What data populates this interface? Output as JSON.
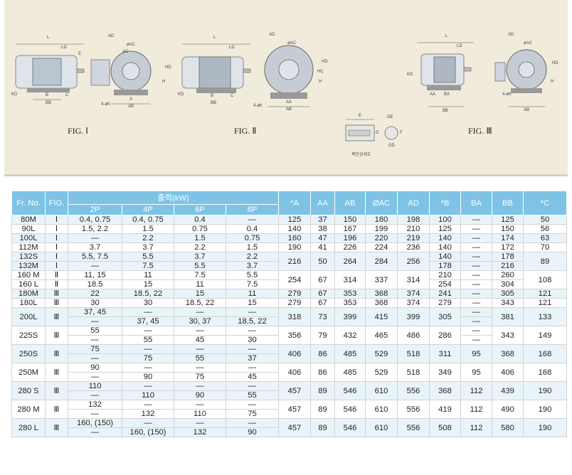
{
  "figures": [
    {
      "label": "FIG. Ⅰ"
    },
    {
      "label": "FIG. Ⅱ"
    },
    {
      "label": "FIG. Ⅲ"
    }
  ],
  "detail_caption": "축단상세도",
  "dims": {
    "fig1": [
      "L",
      "AD",
      "LD",
      "øAC",
      "E",
      "AC",
      "HD",
      "KD",
      "B",
      "C",
      "BB",
      "A",
      "AB",
      "4-øK",
      "H"
    ],
    "fig2": [
      "L",
      "AD",
      "LD",
      "øAC",
      "HD",
      "HC",
      "KD",
      "B",
      "C",
      "BB",
      "AA",
      "AB",
      "4-øK",
      "H"
    ],
    "fig3": [
      "L",
      "AD",
      "LD",
      "øAC",
      "HD",
      "KD",
      "AA",
      "BA",
      "BB",
      "AB",
      "4-øK",
      "H"
    ],
    "detail": [
      "E",
      "GE",
      "D",
      "GD",
      "F"
    ]
  },
  "table": {
    "headers": {
      "frame": "Fr. No.",
      "fig": "FIG.",
      "output": "출력(kW)",
      "poles": [
        "2P",
        "4P",
        "6P",
        "8P"
      ],
      "cols": [
        "*A",
        "AA",
        "AB",
        "ØAC",
        "AD",
        "*B",
        "BA",
        "BB",
        "*C"
      ]
    },
    "rows": [
      {
        "fr": [
          "80M"
        ],
        "fig": "Ⅰ",
        "p2": [
          "0.4, 0.75"
        ],
        "p4": [
          "0.4, 0.75"
        ],
        "p6": [
          "0.4"
        ],
        "p8": [
          "—"
        ],
        "A": "125",
        "AA": "37",
        "AB": "150",
        "AC": "180",
        "AD": "198",
        "B": [
          "100"
        ],
        "BA": [
          "—"
        ],
        "BB": [
          "125"
        ],
        "C": "50"
      },
      {
        "fr": [
          "90L"
        ],
        "fig": "Ⅰ",
        "p2": [
          "1.5, 2.2"
        ],
        "p4": [
          "1.5"
        ],
        "p6": [
          "0.75"
        ],
        "p8": [
          "0.4"
        ],
        "A": "140",
        "AA": "38",
        "AB": "167",
        "AC": "199",
        "AD": "210",
        "B": [
          "125"
        ],
        "BA": [
          "—"
        ],
        "BB": [
          "150"
        ],
        "C": "56"
      },
      {
        "fr": [
          "100L"
        ],
        "fig": "Ⅰ",
        "p2": [
          "—"
        ],
        "p4": [
          "2.2"
        ],
        "p6": [
          "1.5"
        ],
        "p8": [
          "0.75"
        ],
        "A": "160",
        "AA": "47",
        "AB": "196",
        "AC": "220",
        "AD": "219",
        "B": [
          "140"
        ],
        "BA": [
          "—"
        ],
        "BB": [
          "174"
        ],
        "C": "63"
      },
      {
        "fr": [
          "112M"
        ],
        "fig": "Ⅰ",
        "p2": [
          "3.7"
        ],
        "p4": [
          "3.7"
        ],
        "p6": [
          "2.2"
        ],
        "p8": [
          "1.5"
        ],
        "A": "190",
        "AA": "41",
        "AB": "226",
        "AC": "224",
        "AD": "236",
        "B": [
          "140"
        ],
        "BA": [
          "—"
        ],
        "BB": [
          "172"
        ],
        "C": "70"
      },
      {
        "fr": [
          "132S",
          "132M"
        ],
        "fig2": [
          "Ⅰ",
          "Ⅰ"
        ],
        "p2": [
          "5.5, 7.5",
          "—"
        ],
        "p4": [
          "5.5",
          "7.5"
        ],
        "p6": [
          "3.7",
          "5.5"
        ],
        "p8": [
          "2.2",
          "3.7"
        ],
        "A": "216",
        "AA": "50",
        "AB": "264",
        "AC": "284",
        "AD": "256",
        "B": [
          "140",
          "178"
        ],
        "BA": [
          "—",
          "—"
        ],
        "BB": [
          "178",
          "216"
        ],
        "C": "89"
      },
      {
        "fr": [
          "160 M",
          "160 L"
        ],
        "fig2": [
          "Ⅱ",
          "Ⅱ"
        ],
        "p2": [
          "11, 15",
          "18.5"
        ],
        "p4": [
          "11",
          "15"
        ],
        "p6": [
          "7.5",
          "11"
        ],
        "p8": [
          "5.5",
          "7.5"
        ],
        "A": "254",
        "AA": "67",
        "AB": "314",
        "AC": "337",
        "AD": "314",
        "B": [
          "210",
          "254"
        ],
        "BA": [
          "—",
          "—"
        ],
        "BB": [
          "260",
          "304"
        ],
        "C": "108"
      },
      {
        "fr": [
          "180M"
        ],
        "fig": "Ⅲ",
        "p2": [
          "22"
        ],
        "p4": [
          "18.5, 22"
        ],
        "p6": [
          "15"
        ],
        "p8": [
          "11"
        ],
        "A": "279",
        "AA": "67",
        "AB": "353",
        "AC": "368",
        "AD": "374",
        "B": [
          "241"
        ],
        "BA": [
          "—"
        ],
        "BB": [
          "305"
        ],
        "C": "121"
      },
      {
        "fr": [
          "180L"
        ],
        "fig": "Ⅲ",
        "p2": [
          "30"
        ],
        "p4": [
          "30"
        ],
        "p6": [
          "18.5, 22"
        ],
        "p8": [
          "15"
        ],
        "A": "279",
        "AA": "67",
        "AB": "353",
        "AC": "368",
        "AD": "374",
        "B": [
          "279"
        ],
        "BA": [
          "—"
        ],
        "BB": [
          "343"
        ],
        "C": "121"
      },
      {
        "fr": [
          "200L"
        ],
        "fig": "Ⅲ",
        "p2": [
          "37, 45",
          "—"
        ],
        "p4": [
          "—",
          "37, 45"
        ],
        "p6": [
          "—",
          "30, 37"
        ],
        "p8": [
          "—",
          "18.5, 22"
        ],
        "A": "318",
        "AA": "73",
        "AB": "399",
        "AC": "415",
        "AD": "399",
        "B": [
          "305"
        ],
        "BA": [
          "—",
          "—"
        ],
        "BB": [
          "381"
        ],
        "C": "133"
      },
      {
        "fr": [
          "225S"
        ],
        "fig": "Ⅲ",
        "p2": [
          "55",
          "—"
        ],
        "p4": [
          "—",
          "55"
        ],
        "p6": [
          "—",
          "45"
        ],
        "p8": [
          "—",
          "30"
        ],
        "A": "356",
        "AA": "79",
        "AB": "432",
        "AC": "465",
        "AD": "486",
        "B": [
          "286"
        ],
        "BA": [
          "—",
          "—"
        ],
        "BB": [
          "343"
        ],
        "C": "149"
      },
      {
        "fr": [
          "250S"
        ],
        "fig": "Ⅲ",
        "p2": [
          "75",
          "—"
        ],
        "p4": [
          "—",
          "75"
        ],
        "p6": [
          "—",
          "55"
        ],
        "p8": [
          "—",
          "37"
        ],
        "A": "406",
        "AA": "86",
        "AB": "485",
        "AC": "529",
        "AD": "518",
        "B": [
          "311"
        ],
        "BA": [
          "95"
        ],
        "BB": [
          "368"
        ],
        "C": "168"
      },
      {
        "fr": [
          "250M"
        ],
        "fig": "Ⅲ",
        "p2": [
          "90",
          "—"
        ],
        "p4": [
          "—",
          "90"
        ],
        "p6": [
          "—",
          "75"
        ],
        "p8": [
          "—",
          "45"
        ],
        "A": "406",
        "AA": "86",
        "AB": "485",
        "AC": "529",
        "AD": "518",
        "B": [
          "349"
        ],
        "BA": [
          "95"
        ],
        "BB": [
          "406"
        ],
        "C": "168"
      },
      {
        "fr": [
          "280 S"
        ],
        "fig": "Ⅲ",
        "p2": [
          "110",
          "—"
        ],
        "p4": [
          "—",
          "110"
        ],
        "p6": [
          "—",
          "90"
        ],
        "p8": [
          "—",
          "55"
        ],
        "A": "457",
        "AA": "89",
        "AB": "546",
        "AC": "610",
        "AD": "556",
        "B": [
          "368"
        ],
        "BA": [
          "112"
        ],
        "BB": [
          "439"
        ],
        "C": "190"
      },
      {
        "fr": [
          "280 M"
        ],
        "fig": "Ⅲ",
        "p2": [
          "132",
          "—"
        ],
        "p4": [
          "—",
          "132"
        ],
        "p6": [
          "—",
          "110"
        ],
        "p8": [
          "—",
          "75"
        ],
        "A": "457",
        "AA": "89",
        "AB": "546",
        "AC": "610",
        "AD": "556",
        "B": [
          "419"
        ],
        "BA": [
          "112"
        ],
        "BB": [
          "490"
        ],
        "C": "190"
      },
      {
        "fr": [
          "280 L"
        ],
        "fig": "Ⅲ",
        "p2": [
          "160, (150)",
          "—"
        ],
        "p4": [
          "—",
          "160, (150)"
        ],
        "p6": [
          "—",
          "132"
        ],
        "p8": [
          "—",
          "90"
        ],
        "A": "457",
        "AA": "89",
        "AB": "546",
        "AC": "610",
        "AD": "556",
        "B": [
          "508"
        ],
        "BA": [
          "112"
        ],
        "BB": [
          "580"
        ],
        "C": "190"
      }
    ]
  },
  "colors": {
    "header": "#7ec3e6",
    "alt_row": "#e9f4fa",
    "figure_bg": "#f1ebdc"
  }
}
